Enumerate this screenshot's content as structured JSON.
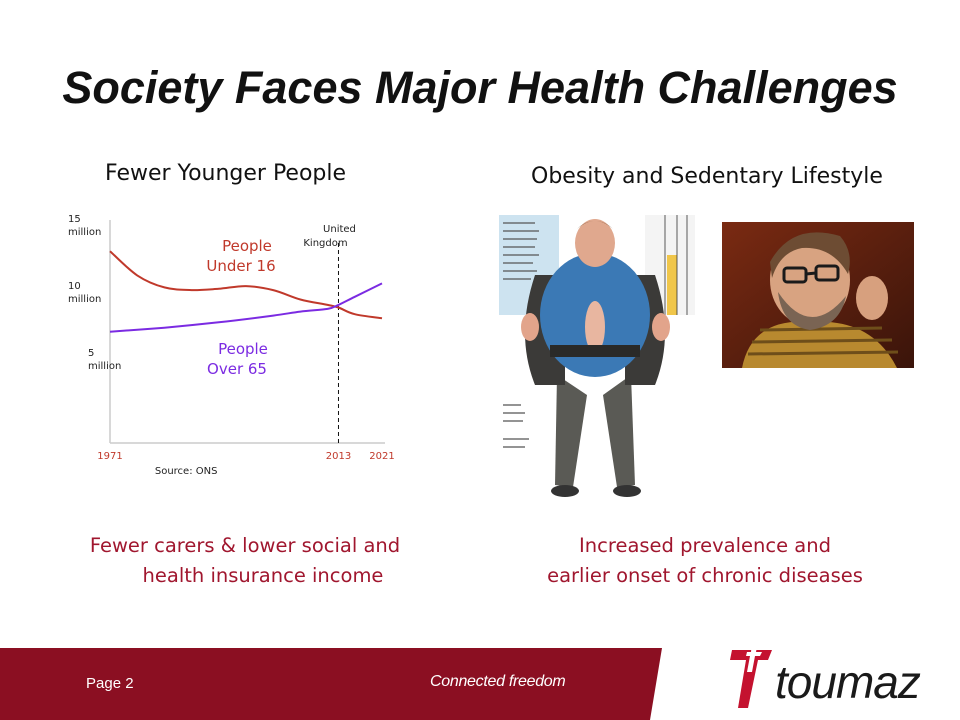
{
  "slide": {
    "title": "Society Faces Major Health Challenges",
    "left_heading": "Fewer Younger People",
    "right_heading": "Obesity and Sedentary Lifestyle",
    "left_caption_line1": "Fewer carers & lower social and",
    "left_caption_line2": "health insurance income",
    "right_caption_line1": "Increased prevalence and",
    "right_caption_line2": "earlier onset of chronic diseases"
  },
  "chart_data": {
    "type": "line",
    "x_ticks": [
      "1971",
      "2013",
      "2021"
    ],
    "y_ticks": [
      {
        "value": 15,
        "line1": "15",
        "line2": "million"
      },
      {
        "value": 10,
        "line1": "10",
        "line2": "million"
      },
      {
        "value": 5,
        "line1": "5",
        "line2": "million"
      }
    ],
    "xlim": [
      1971,
      2021
    ],
    "ylim": [
      0,
      17
    ],
    "source": "Source: ONS",
    "marker": {
      "x": 2013,
      "label_line1": "United",
      "label_line2": "Kingdom"
    },
    "series": [
      {
        "name_line1": "People",
        "name_line2": "Under 16",
        "color": "#c0392b",
        "x": [
          1971,
          1976,
          1981,
          1986,
          1991,
          1996,
          2001,
          2006,
          2011,
          2013,
          2016,
          2021
        ],
        "values": [
          14.3,
          12.5,
          11.6,
          11.4,
          11.5,
          11.7,
          11.4,
          10.7,
          10.3,
          10.1,
          9.6,
          9.3
        ]
      },
      {
        "name_line1": "People",
        "name_line2": "Over 65",
        "color": "#7b2be2",
        "x": [
          1971,
          1981,
          1991,
          2001,
          2006,
          2011,
          2013,
          2016,
          2021
        ],
        "values": [
          8.3,
          8.6,
          9.0,
          9.5,
          9.8,
          10.0,
          10.3,
          10.9,
          11.9
        ]
      }
    ]
  },
  "footer": {
    "page_label": "Page 2",
    "tagline": "Connected freedom",
    "logo_text": "toumaz",
    "color": "#8b0f22"
  }
}
